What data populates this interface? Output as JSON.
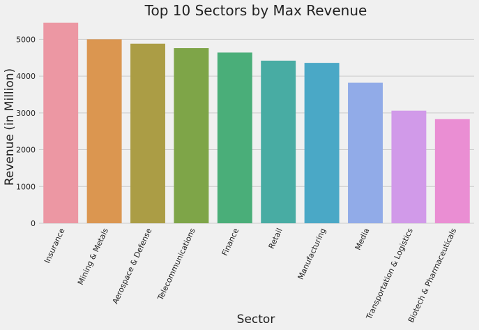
{
  "chart_data": {
    "type": "bar",
    "title": "Top 10 Sectors by Max Revenue",
    "xlabel": "Sector",
    "ylabel": "Revenue (in Million)",
    "ylim": [
      0,
      5500
    ],
    "yticks": [
      0,
      1000,
      2000,
      3000,
      4000,
      5000
    ],
    "grid": "horizontal",
    "categories": [
      "Insurance",
      "Mining & Metals",
      "Aerospace & Defense",
      "Telecommunications",
      "Finance",
      "Retail",
      "Manufacturing",
      "Media",
      "Transportation & Logistics",
      "Biotech & Pharmaceuticals"
    ],
    "values": [
      5450,
      5000,
      4880,
      4760,
      4640,
      4420,
      4360,
      3820,
      3060,
      2830
    ],
    "colors": [
      "#ec97a3",
      "#db9650",
      "#ab9d45",
      "#7ea548",
      "#4aae79",
      "#48aca3",
      "#4aa8c6",
      "#91abe8",
      "#d19ae9",
      "#ea8ed3"
    ]
  }
}
